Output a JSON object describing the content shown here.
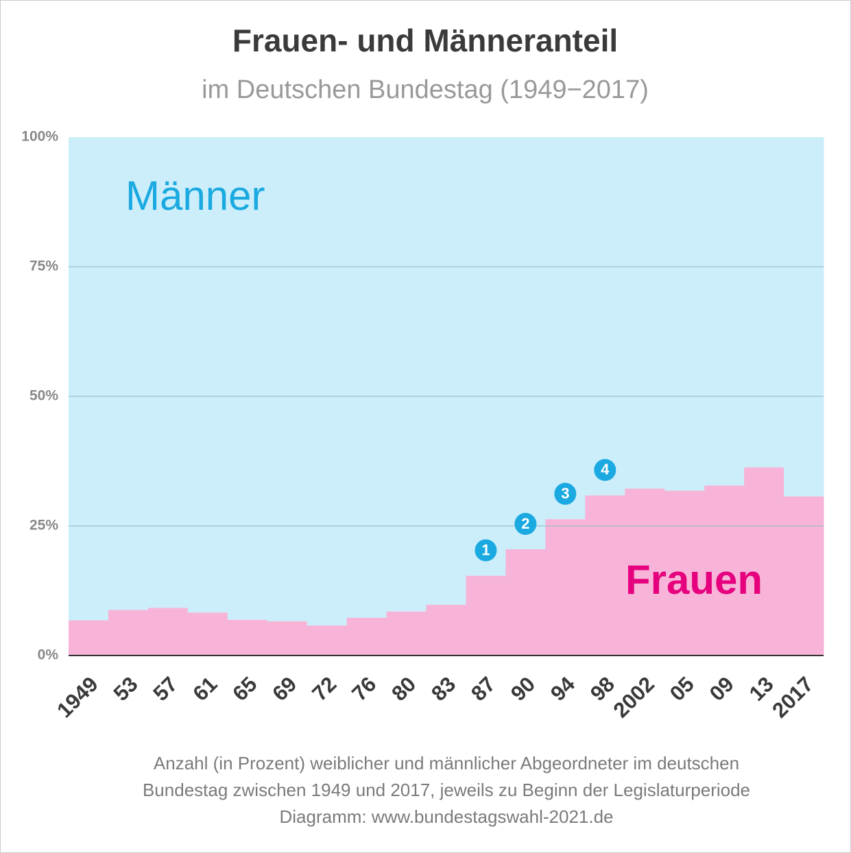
{
  "chart_data": {
    "type": "stacked-bar",
    "title": "Frauen- und Männeranteil",
    "subtitle": "im Deutschen Bundestag (1949−2017)",
    "categories": [
      "1949",
      "53",
      "57",
      "61",
      "65",
      "69",
      "72",
      "76",
      "80",
      "83",
      "87",
      "90",
      "94",
      "98",
      "2002",
      "05",
      "09",
      "13",
      "2017"
    ],
    "series": [
      {
        "name": "Frauen",
        "color": "#f7b4d8",
        "label_color": "#e6007e",
        "values": [
          6.8,
          8.8,
          9.2,
          8.3,
          6.9,
          6.6,
          5.8,
          7.3,
          8.5,
          9.8,
          15.4,
          20.5,
          26.3,
          30.9,
          32.2,
          31.8,
          32.8,
          36.3,
          30.7
        ]
      },
      {
        "name": "Männer",
        "color": "#cbeefa",
        "label_color": "#1aa9e0",
        "values": [
          93.2,
          91.2,
          90.8,
          91.7,
          93.1,
          93.4,
          94.2,
          92.7,
          91.5,
          90.2,
          84.6,
          79.5,
          73.7,
          69.1,
          67.8,
          68.2,
          67.2,
          63.7,
          69.3
        ]
      }
    ],
    "ylim": [
      0,
      100
    ],
    "yticks": [
      {
        "value": 0,
        "label": "0%"
      },
      {
        "value": 25,
        "label": "25%"
      },
      {
        "value": 50,
        "label": "50%"
      },
      {
        "value": 75,
        "label": "75%"
      },
      {
        "value": 100,
        "label": "100%"
      }
    ],
    "grid": true,
    "annotations": [
      {
        "text": "1",
        "x": "87"
      },
      {
        "text": "2",
        "x": "90"
      },
      {
        "text": "3",
        "x": "94"
      },
      {
        "text": "4",
        "x": "98"
      }
    ],
    "footnote": [
      "Anzahl (in Prozent) weiblicher und männlicher Abgeordneter im deutschen",
      "Bundestag zwischen 1949 und 2017, jeweils zu Beginn der Legislaturperiode",
      "Diagramm: www.bundestagswahl-2021.de"
    ]
  }
}
